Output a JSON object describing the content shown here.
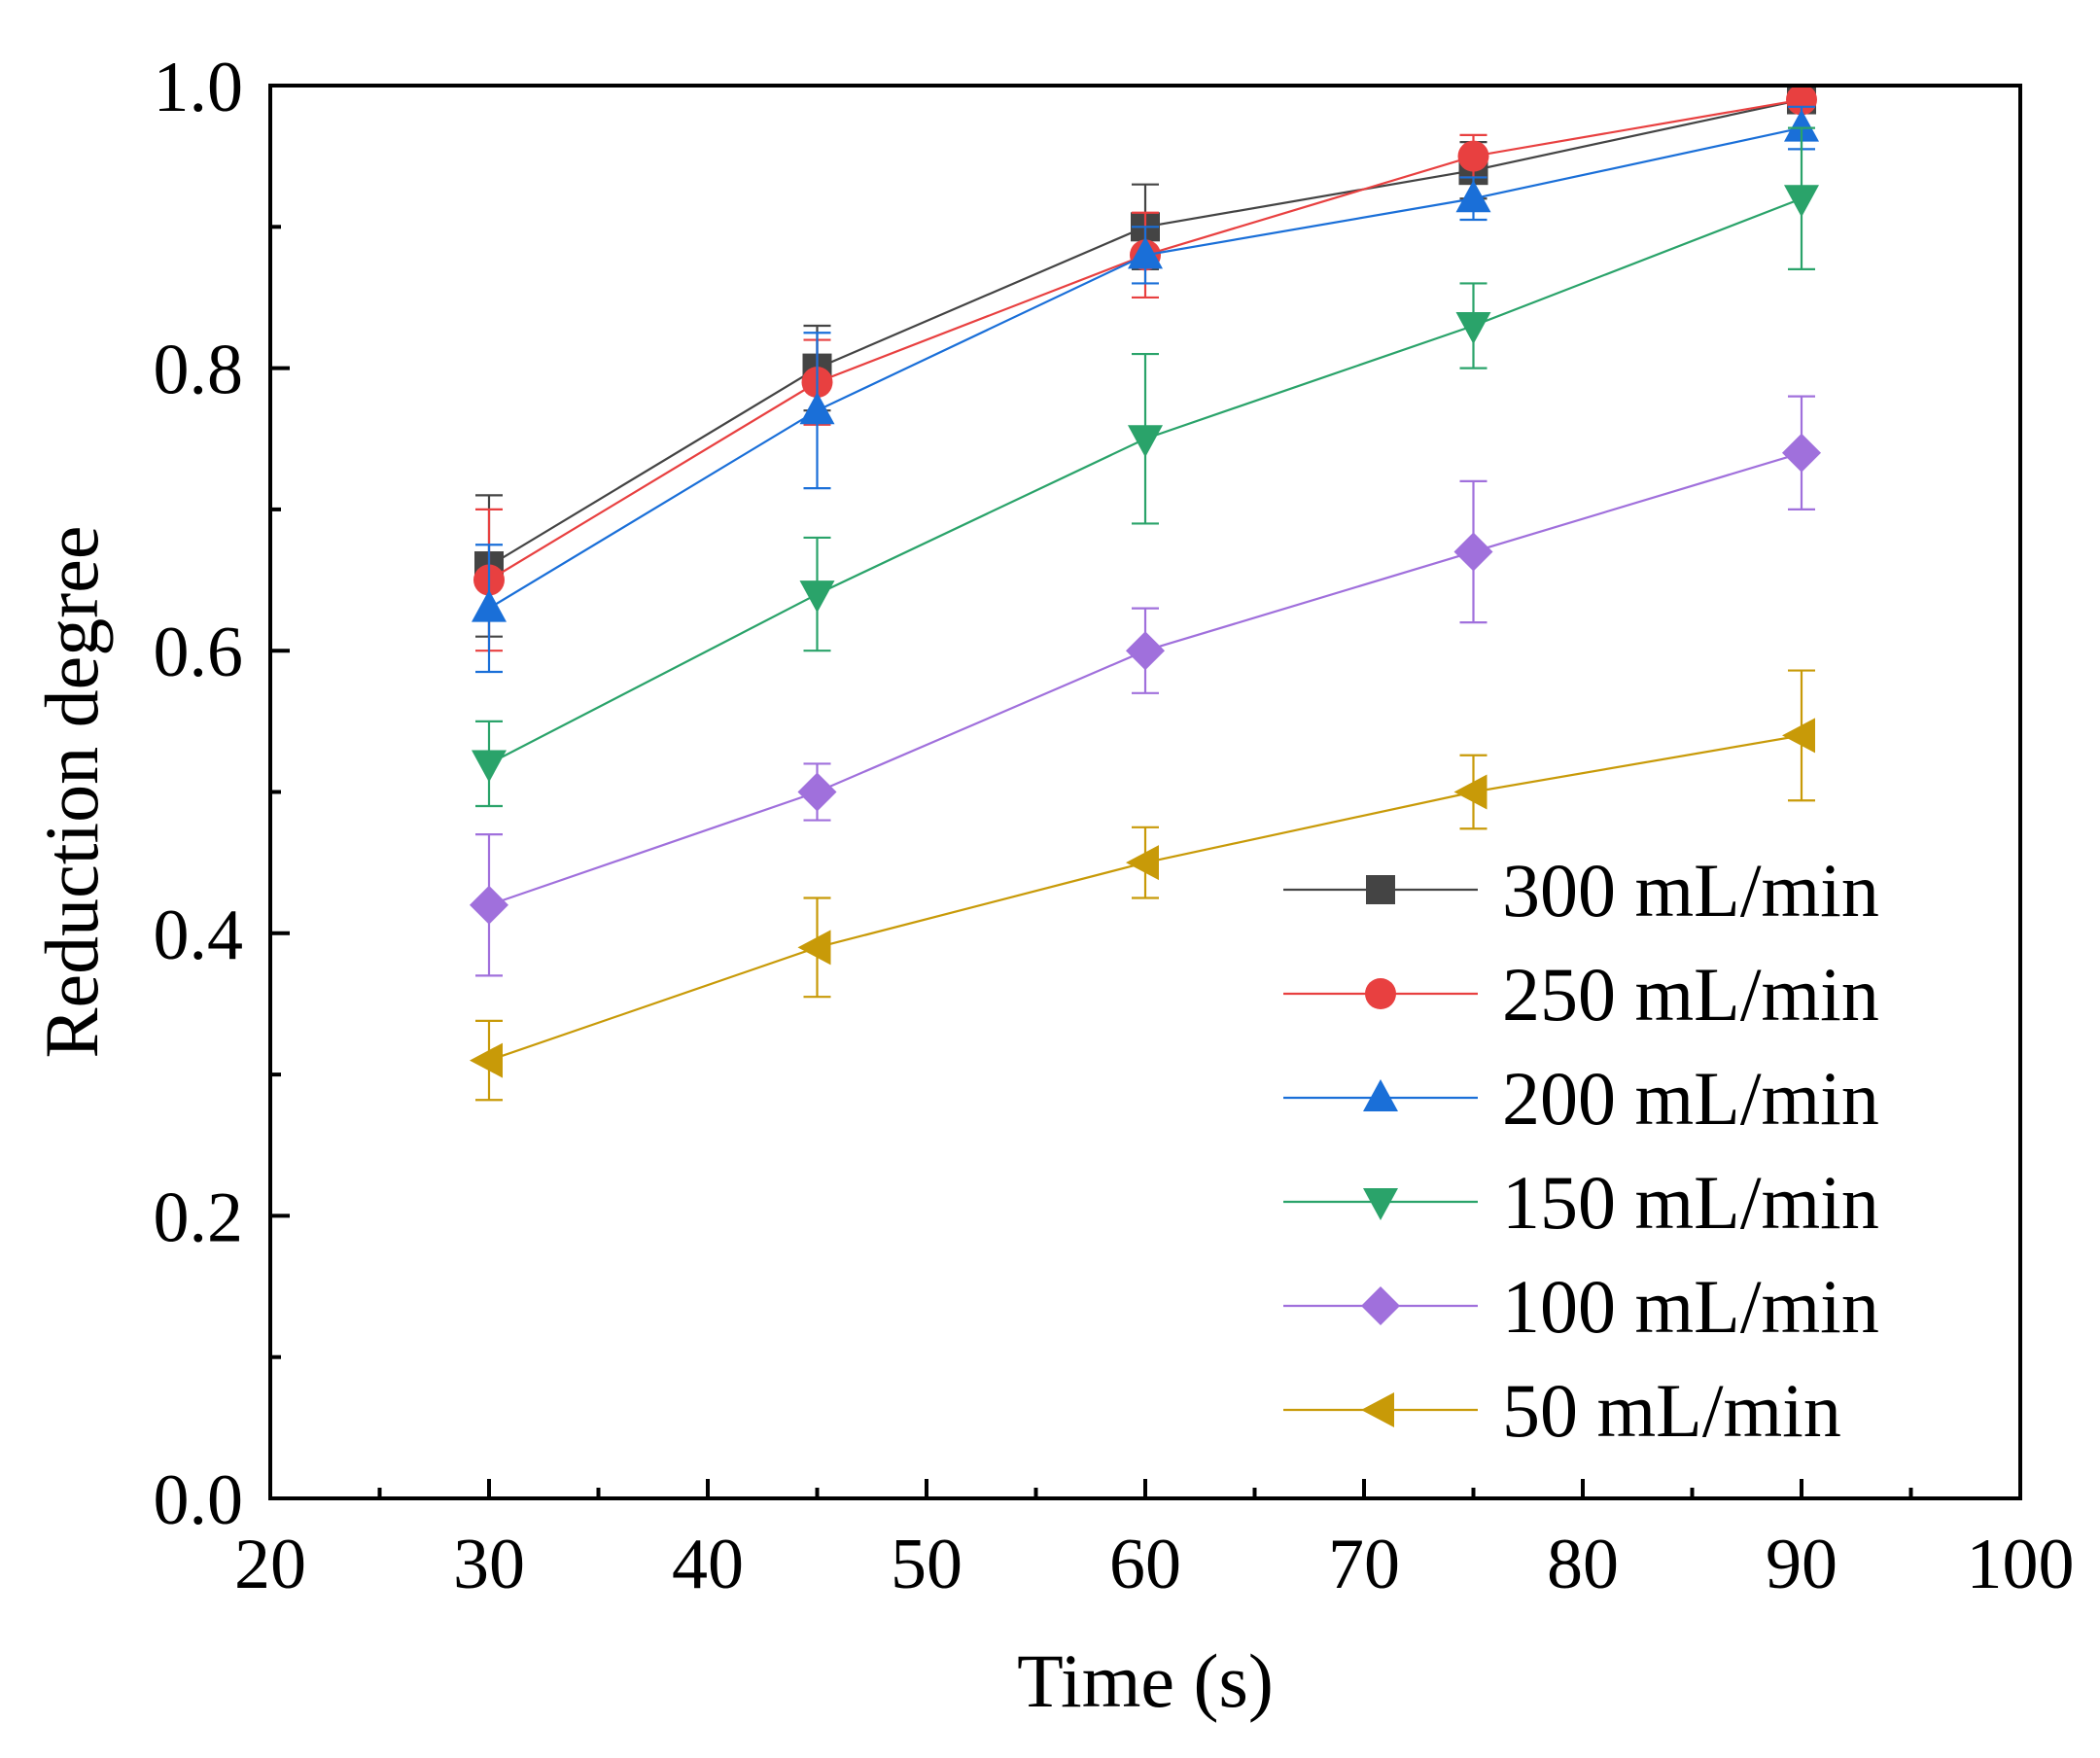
{
  "chart_data": {
    "type": "line",
    "title": "",
    "xlabel": "Time (s)",
    "ylabel": "Reduction degree",
    "xlim": [
      20,
      100
    ],
    "ylim": [
      0.0,
      1.0
    ],
    "x_ticks": [
      "20",
      "30",
      "40",
      "50",
      "60",
      "70",
      "80",
      "90",
      "100"
    ],
    "y_ticks": [
      "0.0",
      "0.2",
      "0.4",
      "0.6",
      "0.8",
      "1.0"
    ],
    "x": [
      30,
      45,
      60,
      75,
      90
    ],
    "legend_position": "bottom-right",
    "series": [
      {
        "name": "300 mL/min",
        "color": "#444444",
        "marker": "square",
        "values": [
          0.66,
          0.8,
          0.9,
          0.94,
          0.99
        ],
        "errors": [
          0.05,
          0.03,
          0.03,
          0.02,
          0.005
        ]
      },
      {
        "name": "250 mL/min",
        "color": "#e84040",
        "marker": "circle",
        "values": [
          0.65,
          0.79,
          0.88,
          0.95,
          0.99
        ],
        "errors": [
          0.05,
          0.03,
          0.03,
          0.015,
          0.005
        ]
      },
      {
        "name": "200 mL/min",
        "color": "#1a6fd8",
        "marker": "triangle-up",
        "values": [
          0.63,
          0.77,
          0.88,
          0.92,
          0.97
        ],
        "errors": [
          0.045,
          0.055,
          0.02,
          0.015,
          0.015
        ]
      },
      {
        "name": "150 mL/min",
        "color": "#2aa36a",
        "marker": "triangle-down",
        "values": [
          0.52,
          0.64,
          0.75,
          0.83,
          0.92
        ],
        "errors": [
          0.03,
          0.04,
          0.06,
          0.03,
          0.05
        ]
      },
      {
        "name": "100 mL/min",
        "color": "#a070dc",
        "marker": "diamond",
        "values": [
          0.42,
          0.5,
          0.6,
          0.67,
          0.74
        ],
        "errors": [
          0.05,
          0.02,
          0.03,
          0.05,
          0.04
        ]
      },
      {
        "name": "50 mL/min",
        "color": "#c89a08",
        "marker": "triangle-left",
        "values": [
          0.31,
          0.39,
          0.45,
          0.5,
          0.54
        ],
        "errors": [
          0.028,
          0.035,
          0.025,
          0.026,
          0.046
        ]
      }
    ]
  }
}
